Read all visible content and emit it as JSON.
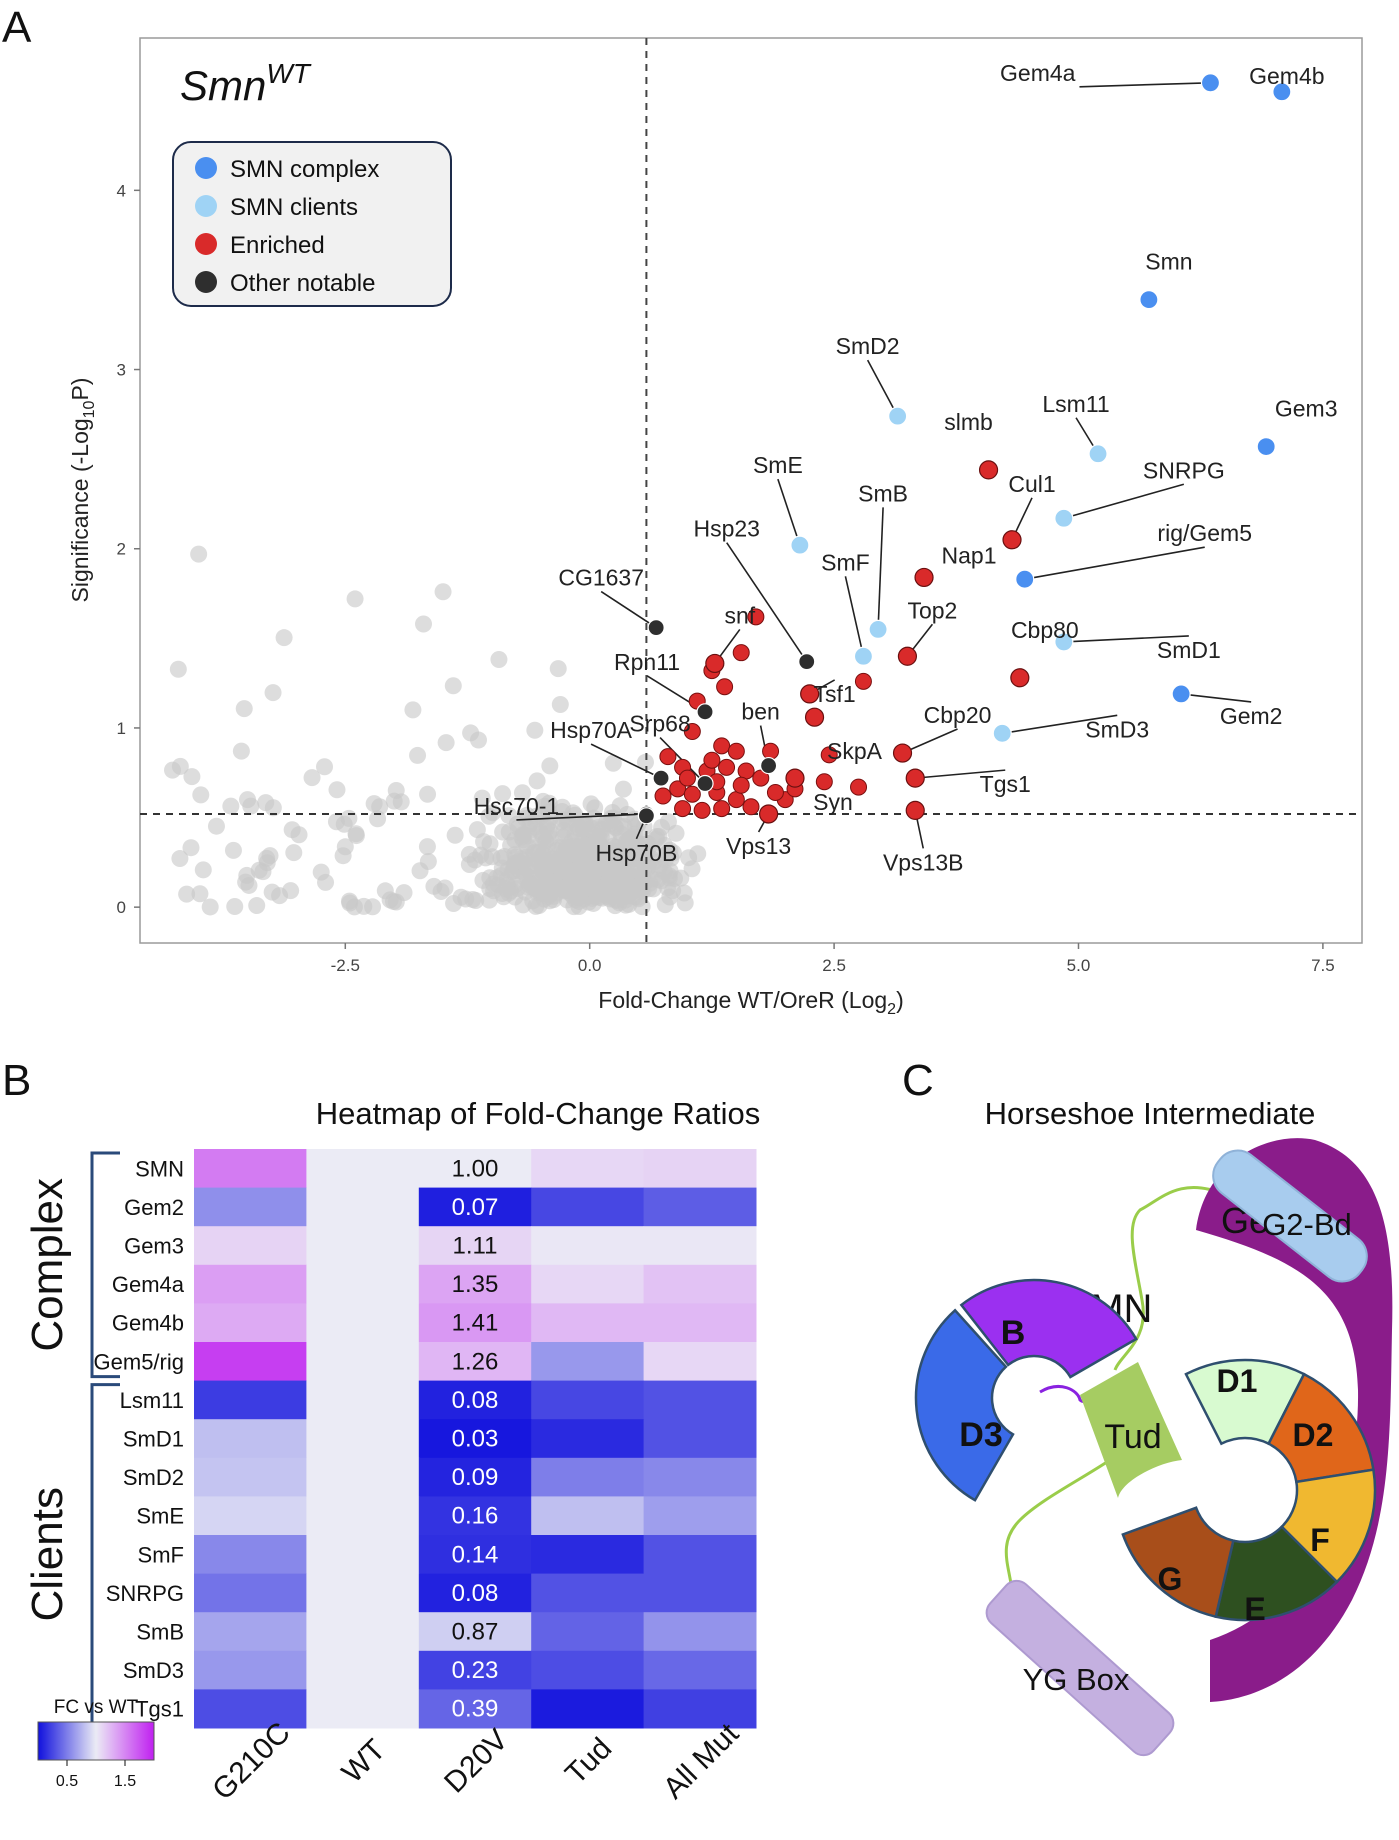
{
  "panel_letters": {
    "a": "A",
    "b": "B",
    "c": "C"
  },
  "chart_data": [
    {
      "type": "scatter",
      "title_base": "Smn",
      "title_sup": "WT",
      "xlabel_main": "Fold-Change WT/OreR (Log",
      "xlabel_sub": "2",
      "xlabel_end": ")",
      "ylabel_main": "Significance (-Log",
      "ylabel_sub": "10",
      "ylabel_end": "P)",
      "xlim": [
        -4.6,
        7.9
      ],
      "ylim": [
        -0.2,
        4.85
      ],
      "x_ticks": [
        -2.5,
        0.0,
        2.5,
        5.0,
        7.5
      ],
      "x_tick_labels": [
        "-2.5",
        "0.0",
        "2.5",
        "5.0",
        "7.5"
      ],
      "y_ticks": [
        0,
        1,
        2,
        3,
        4
      ],
      "y_tick_labels": [
        "0",
        "1",
        "2",
        "3",
        "4"
      ],
      "vline_x": 0.58,
      "hline_y": 0.52,
      "grid": false,
      "legend_position": "top-left",
      "legend": [
        {
          "label": "SMN complex",
          "color": "#4a8ff0"
        },
        {
          "label": "SMN clients",
          "color": "#9fd3f5"
        },
        {
          "label": "Enriched",
          "color": "#d92a2a"
        },
        {
          "label": "Other notable",
          "color": "#2e2e2e"
        }
      ],
      "colors": {
        "background_points": "#c8c8c8",
        "complex": "#4a8ff0",
        "clients": "#9fd3f5",
        "enriched": "#d92a2a",
        "other": "#2e2e2e"
      },
      "labeled_points": [
        {
          "name": "Gem4a",
          "x": 6.35,
          "y": 4.6,
          "group": "complex"
        },
        {
          "name": "Gem4b",
          "x": 7.08,
          "y": 4.55,
          "group": "complex"
        },
        {
          "name": "Smn",
          "x": 5.72,
          "y": 3.39,
          "group": "complex"
        },
        {
          "name": "Gem3",
          "x": 6.92,
          "y": 2.57,
          "group": "complex"
        },
        {
          "name": "rig/Gem5",
          "x": 4.45,
          "y": 1.83,
          "group": "complex"
        },
        {
          "name": "Gem2",
          "x": 6.05,
          "y": 1.19,
          "group": "complex"
        },
        {
          "name": "SmD2",
          "x": 3.15,
          "y": 2.74,
          "group": "clients"
        },
        {
          "name": "Lsm11",
          "x": 5.2,
          "y": 2.53,
          "group": "clients"
        },
        {
          "name": "SNRPG",
          "x": 4.85,
          "y": 2.17,
          "group": "clients"
        },
        {
          "name": "SmE",
          "x": 2.15,
          "y": 2.02,
          "group": "clients"
        },
        {
          "name": "SmB",
          "x": 2.95,
          "y": 1.55,
          "group": "clients"
        },
        {
          "name": "SmF",
          "x": 2.8,
          "y": 1.4,
          "group": "clients"
        },
        {
          "name": "SmD1",
          "x": 4.85,
          "y": 1.48,
          "group": "clients"
        },
        {
          "name": "SmD3",
          "x": 4.22,
          "y": 0.97,
          "group": "clients"
        },
        {
          "name": "slmb",
          "x": 4.08,
          "y": 2.44,
          "group": "enriched"
        },
        {
          "name": "Cul1",
          "x": 4.32,
          "y": 2.05,
          "group": "enriched"
        },
        {
          "name": "Nap1",
          "x": 3.42,
          "y": 1.84,
          "group": "enriched"
        },
        {
          "name": "Top2",
          "x": 3.25,
          "y": 1.4,
          "group": "enriched"
        },
        {
          "name": "Cbp80",
          "x": 4.4,
          "y": 1.28,
          "group": "enriched"
        },
        {
          "name": "Cbp20",
          "x": 3.2,
          "y": 0.86,
          "group": "enriched"
        },
        {
          "name": "Tgs1",
          "x": 3.33,
          "y": 0.72,
          "group": "enriched"
        },
        {
          "name": "Vps13B",
          "x": 3.33,
          "y": 0.54,
          "group": "enriched"
        },
        {
          "name": "Vps13",
          "x": 1.83,
          "y": 0.52,
          "group": "enriched"
        },
        {
          "name": "snf",
          "x": 1.28,
          "y": 1.36,
          "group": "enriched"
        },
        {
          "name": "Tsf1",
          "x": 2.25,
          "y": 1.19,
          "group": "enriched"
        },
        {
          "name": "SkpA",
          "x": 2.3,
          "y": 1.06,
          "group": "enriched"
        },
        {
          "name": "Syn",
          "x": 2.1,
          "y": 0.72,
          "group": "enriched"
        },
        {
          "name": "CG1637",
          "x": 0.68,
          "y": 1.56,
          "group": "other"
        },
        {
          "name": "Hsp23",
          "x": 2.22,
          "y": 1.37,
          "group": "other"
        },
        {
          "name": "Rpn11",
          "x": 1.18,
          "y": 1.09,
          "group": "other"
        },
        {
          "name": "ben",
          "x": 1.83,
          "y": 0.79,
          "group": "other"
        },
        {
          "name": "Srp68",
          "x": 1.18,
          "y": 0.69,
          "group": "other"
        },
        {
          "name": "Hsp70A",
          "x": 0.73,
          "y": 0.72,
          "group": "other"
        },
        {
          "name": "Hsc70-1",
          "x": 0.58,
          "y": 0.52,
          "group": "other"
        },
        {
          "name": "Hsp70B",
          "x": 0.58,
          "y": 0.51,
          "group": "other"
        }
      ],
      "enriched_unlabeled": [
        [
          1.38,
          1.23
        ],
        [
          1.55,
          1.42
        ],
        [
          1.7,
          1.62
        ],
        [
          1.25,
          1.32
        ],
        [
          1.1,
          1.15
        ],
        [
          1.05,
          0.98
        ],
        [
          1.35,
          0.9
        ],
        [
          1.5,
          0.87
        ],
        [
          1.85,
          0.87
        ],
        [
          2.45,
          0.85
        ],
        [
          2.4,
          0.7
        ],
        [
          2.8,
          1.26
        ],
        [
          0.8,
          0.84
        ],
        [
          0.95,
          0.78
        ],
        [
          1.2,
          0.76
        ],
        [
          1.4,
          0.78
        ],
        [
          1.6,
          0.76
        ],
        [
          1.75,
          0.72
        ],
        [
          0.9,
          0.66
        ],
        [
          1.05,
          0.63
        ],
        [
          1.3,
          0.64
        ],
        [
          1.5,
          0.6
        ],
        [
          0.95,
          0.55
        ],
        [
          1.15,
          0.54
        ],
        [
          1.35,
          0.55
        ],
        [
          1.65,
          0.56
        ],
        [
          2.0,
          0.6
        ],
        [
          2.75,
          0.67
        ],
        [
          0.75,
          0.62
        ],
        [
          1.0,
          0.72
        ],
        [
          1.3,
          0.7
        ],
        [
          1.55,
          0.68
        ],
        [
          2.1,
          0.66
        ],
        [
          1.9,
          0.64
        ],
        [
          1.25,
          0.82
        ]
      ]
    },
    {
      "type": "heatmap",
      "title": "Heatmap of Fold-Change Ratios",
      "columns": [
        "G210C",
        "WT",
        "D20V",
        "Tud",
        "All Mut"
      ],
      "rows": [
        "SMN",
        "Gem2",
        "Gem3",
        "Gem4a",
        "Gem4b",
        "Gem5/rig",
        "Lsm11",
        "SmD1",
        "SmD2",
        "SmE",
        "SmF",
        "SNRPG",
        "SmB",
        "SmD3",
        "Tgs1"
      ],
      "groups": [
        {
          "label": "Complex",
          "start_row": 0,
          "end_row": 5
        },
        {
          "label": "Clients",
          "start_row": 6,
          "end_row": 14
        }
      ],
      "values": [
        [
          1.55,
          1.0,
          1.0,
          1.1,
          1.12
        ],
        [
          0.58,
          1.0,
          0.07,
          0.25,
          0.35
        ],
        [
          1.12,
          1.0,
          1.11,
          1.02,
          1.02
        ],
        [
          1.38,
          1.0,
          1.35,
          1.1,
          1.2
        ],
        [
          1.32,
          1.0,
          1.41,
          1.25,
          1.25
        ],
        [
          1.85,
          1.0,
          1.26,
          0.62,
          1.1
        ],
        [
          0.2,
          1.0,
          0.08,
          0.25,
          0.3
        ],
        [
          0.8,
          1.0,
          0.03,
          0.12,
          0.3
        ],
        [
          0.82,
          1.0,
          0.09,
          0.5,
          0.55
        ],
        [
          0.9,
          1.0,
          0.16,
          0.8,
          0.65
        ],
        [
          0.55,
          1.0,
          0.14,
          0.12,
          0.3
        ],
        [
          0.45,
          1.0,
          0.08,
          0.3,
          0.3
        ],
        [
          0.68,
          1.0,
          0.87,
          0.38,
          0.6
        ],
        [
          0.62,
          1.0,
          0.23,
          0.28,
          0.4
        ],
        [
          0.28,
          1.0,
          0.39,
          0.05,
          0.22
        ]
      ],
      "labeled_column": "D20V",
      "value_labels": [
        "1.00",
        "0.07",
        "1.11",
        "1.35",
        "1.41",
        "1.26",
        "0.08",
        "0.03",
        "0.09",
        "0.16",
        "0.14",
        "0.08",
        "0.87",
        "0.23",
        "0.39"
      ],
      "colorbar": {
        "title": "FC vs WT",
        "ticks": [
          0.5,
          1.5
        ],
        "tick_labels": [
          "0.5",
          "1.5"
        ],
        "min": 0,
        "max": 2,
        "colors": [
          "#1010dd",
          "#ebebf5",
          "#c020f0"
        ]
      }
    }
  ],
  "diagram": {
    "title": "Horseshoe Intermediate",
    "labels": {
      "smn": "SMN",
      "g2bd": "G2-Bd",
      "gem2": "Gem2",
      "b": "B",
      "d3": "D3",
      "tud": "Tud",
      "d1": "D1",
      "d2": "D2",
      "f": "F",
      "e": "E",
      "g": "G",
      "yg": "YG Box"
    },
    "colors": {
      "gem2": "#8a1c8a",
      "g2bd": "#a8ccee",
      "b": "#9b30f0",
      "d3": "#3a6ae8",
      "tud": "#a6cc62",
      "d1": "#d8fad0",
      "d2": "#e0661a",
      "f": "#f0b830",
      "e": "#2e5020",
      "g": "#a84e1a",
      "yg": "#c4b0e0",
      "linker": "#9acd4a"
    }
  }
}
